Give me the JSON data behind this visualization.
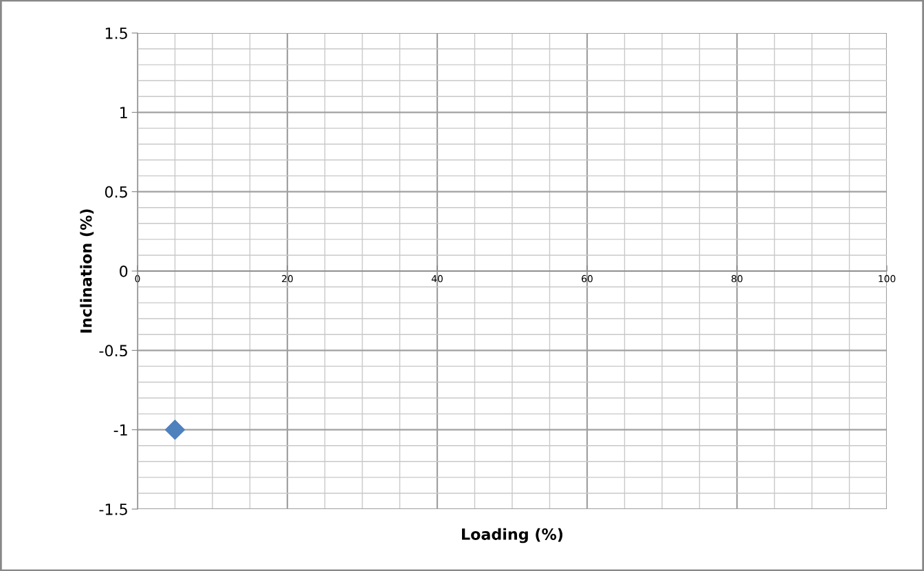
{
  "chart_data": {
    "type": "scatter",
    "xlabel": "Loading (%)",
    "ylabel": "Inclination (%)",
    "x": [
      5
    ],
    "values": [
      -1
    ],
    "color": "#4f81bd",
    "marker": "diamond",
    "xlim": [
      0,
      100
    ],
    "xticks": [
      0,
      20,
      40,
      60,
      80,
      100
    ],
    "ylim": [
      -1.5,
      1.5
    ],
    "yticks": [
      -1.5,
      -1,
      -0.5,
      0,
      0.5,
      1,
      1.5
    ],
    "grid": true
  }
}
